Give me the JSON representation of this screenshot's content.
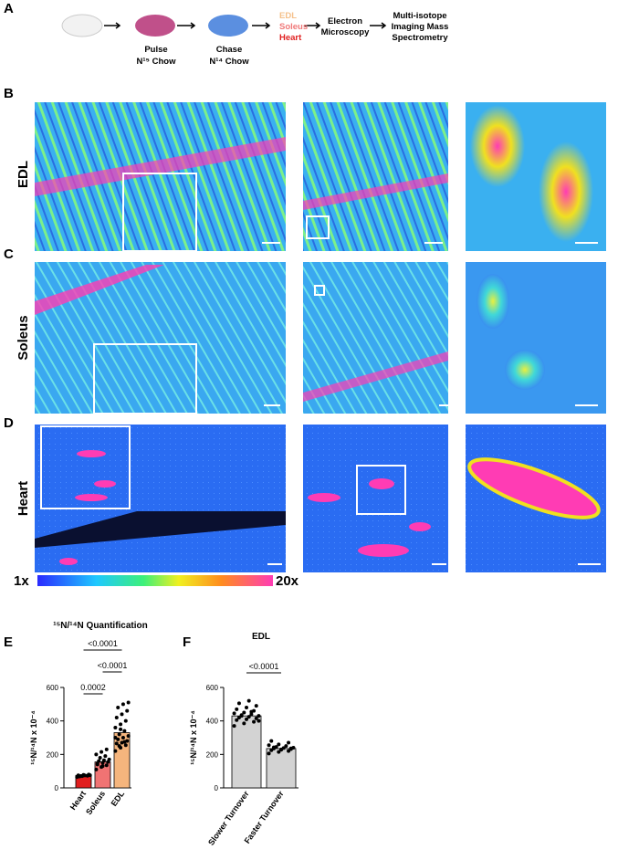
{
  "panel_labels": [
    "A",
    "B",
    "C",
    "D",
    "E",
    "F"
  ],
  "panel_a": {
    "pulse": "Pulse",
    "pulse_chow": "N¹⁵ Chow",
    "chase": "Chase",
    "chase_chow": "N¹⁴ Chow",
    "tissues": [
      "EDL",
      "Soleus",
      "Heart"
    ],
    "em": [
      "Electron",
      "Microscopy"
    ],
    "mims": [
      "Multi-isotope",
      "Imaging Mass",
      "Spectrometry"
    ]
  },
  "row_labels": [
    "EDL",
    "Soleus",
    "Heart"
  ],
  "colorbar": {
    "min_label": "1x",
    "max_label": "20x"
  },
  "chart_data": [
    {
      "type": "bar",
      "title": "¹⁵N/¹⁴N Quantification",
      "ylabel": "¹⁵N/¹⁴N x 10⁻⁴",
      "categories": [
        "Heart",
        "Soleus",
        "EDL"
      ],
      "values": [
        75,
        155,
        330
      ],
      "colors": [
        "#e01e1e",
        "#f07373",
        "#f5b57d"
      ],
      "points": [
        [
          65,
          70,
          72,
          75,
          78,
          80,
          68,
          74,
          76,
          71
        ],
        [
          110,
          125,
          135,
          140,
          150,
          155,
          160,
          165,
          170,
          180,
          190,
          200,
          215,
          230,
          145,
          130
        ],
        [
          220,
          240,
          255,
          265,
          270,
          280,
          290,
          300,
          310,
          320,
          340,
          360,
          380,
          400,
          420,
          440,
          460,
          480,
          500,
          510,
          250,
          275,
          300,
          350
        ]
      ],
      "ylim": [
        0,
        600
      ],
      "yticks": [
        0,
        200,
        400,
        600
      ],
      "comparisons": [
        "<0.0001",
        "<0.0001",
        "0.0002"
      ]
    },
    {
      "type": "bar",
      "title": "EDL",
      "ylabel": "¹⁵N/¹⁴N x 10⁻⁴",
      "categories": [
        "Slower Turnover",
        "Faster Turnover"
      ],
      "values": [
        430,
        235
      ],
      "colors": [
        "#d3d3d3",
        "#d3d3d3"
      ],
      "points": [
        [
          370,
          385,
          395,
          405,
          410,
          415,
          420,
          425,
          430,
          435,
          440,
          445,
          450,
          460,
          470,
          480,
          490,
          505,
          520,
          400,
          430,
          455
        ],
        [
          205,
          215,
          220,
          225,
          230,
          232,
          235,
          238,
          240,
          245,
          250,
          255,
          260,
          270,
          280,
          228,
          236,
          242
        ]
      ],
      "ylim": [
        0,
        600
      ],
      "yticks": [
        0,
        200,
        400,
        600
      ],
      "comparisons": [
        "<0.0001"
      ]
    }
  ]
}
